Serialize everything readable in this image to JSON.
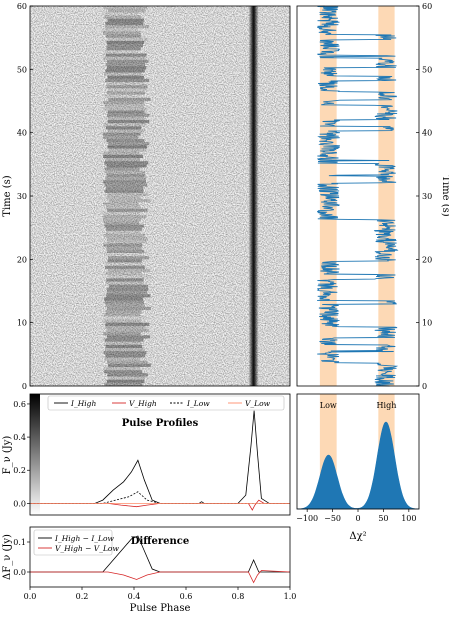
{
  "chart_data": [
    {
      "type": "heatmap",
      "panel": "waterfall",
      "ylabel": "Time (s)",
      "ylim": [
        0,
        60
      ],
      "yticks": [
        0,
        10,
        20,
        30,
        40,
        50,
        60
      ],
      "xlim": [
        0.0,
        1.0
      ],
      "bright_component_phase": 0.86,
      "intermittent_component_phase": [
        0.28,
        0.45
      ]
    },
    {
      "type": "line",
      "panel": "chi2-timeseries",
      "ylabel": "Time (s)",
      "ylim": [
        0,
        60
      ],
      "yticks": [
        0,
        10,
        20,
        30,
        40,
        50,
        60
      ],
      "xlim": [
        -120,
        120
      ],
      "shaded_bands": [
        [
          -75,
          -42
        ],
        [
          40,
          72
        ]
      ],
      "color": "#1f77b4"
    },
    {
      "type": "area",
      "panel": "chi2-histogram",
      "xlabel": "Δχ²",
      "xlim": [
        -120,
        120
      ],
      "xticks": [
        -100,
        -50,
        0,
        50,
        100
      ],
      "shaded_bands": [
        [
          -75,
          -42
        ],
        [
          40,
          72
        ]
      ],
      "band_labels": [
        "Low",
        "High"
      ],
      "peaks": [
        {
          "x": -58,
          "height": 0.62
        },
        {
          "x": 55,
          "height": 1.0
        }
      ],
      "color": "#1f77b4"
    },
    {
      "type": "line",
      "panel": "pulse-profiles",
      "title": "Pulse Profiles",
      "ylabel": "F_ν (Jy)",
      "ylim": [
        -0.07,
        0.66
      ],
      "yticks": [
        0.0,
        0.2,
        0.4,
        0.6
      ],
      "xlim": [
        0.0,
        1.0
      ],
      "legend": [
        "I_High",
        "V_High",
        "I_Low",
        "V_Low"
      ],
      "legend_position": "top",
      "series": [
        {
          "name": "I_High",
          "color": "#000000",
          "style": "solid",
          "x": [
            0.0,
            0.25,
            0.28,
            0.32,
            0.36,
            0.39,
            0.415,
            0.44,
            0.47,
            0.5,
            0.65,
            0.66,
            0.67,
            0.8,
            0.83,
            0.85,
            0.862,
            0.875,
            0.89,
            0.92,
            1.0
          ],
          "y": [
            0.0,
            0.0,
            0.02,
            0.08,
            0.13,
            0.19,
            0.26,
            0.14,
            0.02,
            0.0,
            0.0,
            0.01,
            0.0,
            0.0,
            0.05,
            0.35,
            0.56,
            0.3,
            0.03,
            0.0,
            0.0
          ]
        },
        {
          "name": "V_High",
          "color": "#d62728",
          "style": "solid",
          "x": [
            0.0,
            0.3,
            0.35,
            0.41,
            0.45,
            0.5,
            0.84,
            0.855,
            0.865,
            0.88,
            0.9,
            1.0
          ],
          "y": [
            0.0,
            0.0,
            -0.01,
            -0.02,
            -0.01,
            0.0,
            0.0,
            -0.04,
            -0.01,
            0.02,
            0.0,
            0.0
          ]
        },
        {
          "name": "I_Low",
          "color": "#000000",
          "style": "dashed",
          "x": [
            0.0,
            0.28,
            0.33,
            0.38,
            0.415,
            0.45,
            0.5,
            1.0
          ],
          "y": [
            0.0,
            0.0,
            0.02,
            0.04,
            0.07,
            0.02,
            0.0,
            0.0
          ]
        },
        {
          "name": "V_Low",
          "color": "#ff8c69",
          "style": "solid",
          "x": [
            0.0,
            1.0
          ],
          "y": [
            0.0,
            0.0
          ]
        }
      ]
    },
    {
      "type": "line",
      "panel": "difference",
      "title": "Difference",
      "ylabel": "ΔF_ν (Jy)",
      "xlabel": "Pulse Phase",
      "ylim": [
        -0.05,
        0.15
      ],
      "yticks": [
        0.0,
        0.1
      ],
      "xlim": [
        0.0,
        1.0
      ],
      "xticks": [
        0.0,
        0.2,
        0.4,
        0.6,
        0.8,
        1.0
      ],
      "legend": [
        "I_High − I_Low",
        "V_High − V_Low"
      ],
      "legend_position": "top-left",
      "series": [
        {
          "name": "I_High − I_Low",
          "color": "#000000",
          "x": [
            0.0,
            0.28,
            0.32,
            0.36,
            0.39,
            0.415,
            0.44,
            0.47,
            0.5,
            0.84,
            0.85,
            0.86,
            0.87,
            0.88,
            1.0
          ],
          "y": [
            0.0,
            0.0,
            0.04,
            0.08,
            0.11,
            0.12,
            0.07,
            0.01,
            0.0,
            0.0,
            0.02,
            0.04,
            0.02,
            0.0,
            0.0
          ]
        },
        {
          "name": "V_High − V_Low",
          "color": "#d62728",
          "x": [
            0.0,
            0.3,
            0.36,
            0.41,
            0.45,
            0.5,
            0.84,
            0.86,
            0.875,
            0.89,
            1.0
          ],
          "y": [
            0.0,
            0.0,
            -0.01,
            -0.025,
            -0.01,
            0.0,
            0.0,
            -0.035,
            -0.01,
            0.005,
            0.0
          ]
        }
      ]
    }
  ]
}
